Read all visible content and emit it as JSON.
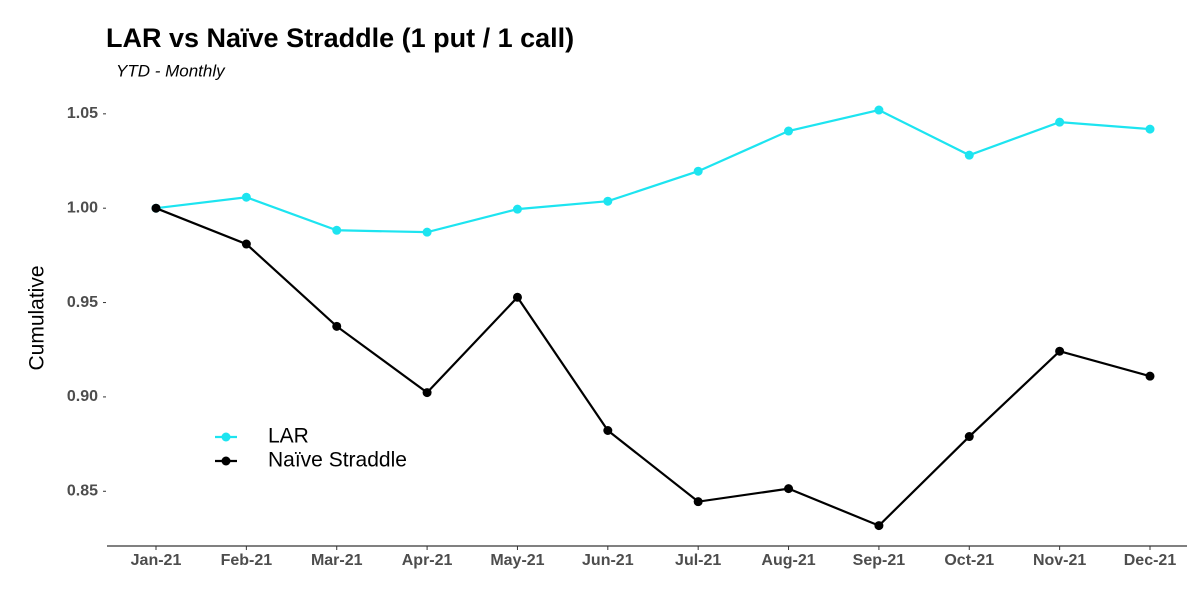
{
  "chart_data": {
    "type": "line",
    "title": "LAR vs Naïve Straddle (1 put / 1 call)",
    "subtitle": "YTD - Monthly",
    "y_label": "Cumulative",
    "categories": [
      "Jan-21",
      "Feb-21",
      "Mar-21",
      "Apr-21",
      "May-21",
      "Jun-21",
      "Jul-21",
      "Aug-21",
      "Sep-21",
      "Oct-21",
      "Nov-21",
      "Dec-21"
    ],
    "series": [
      {
        "name": "LAR",
        "color": "#1de4f0",
        "values": [
          1.0,
          1.0058,
          0.9883,
          0.9873,
          0.9995,
          1.0037,
          1.0196,
          1.0409,
          1.052,
          1.0281,
          1.0456,
          1.0419
        ]
      },
      {
        "name": "Naïve Straddle",
        "color": "#000000",
        "values": [
          1.0,
          0.981,
          0.9374,
          0.9023,
          0.9528,
          0.8822,
          0.8445,
          0.8514,
          0.8318,
          0.879,
          0.9242,
          0.911
        ]
      }
    ],
    "ylim": [
      0.821,
      1.055
    ],
    "yticks": [
      0.85,
      {
        "value": 0.9,
        "label": "0.90"
      },
      0.95,
      {
        "value": 1,
        "label": "1.00"
      },
      1.05
    ],
    "grid": false,
    "legend": "left"
  }
}
